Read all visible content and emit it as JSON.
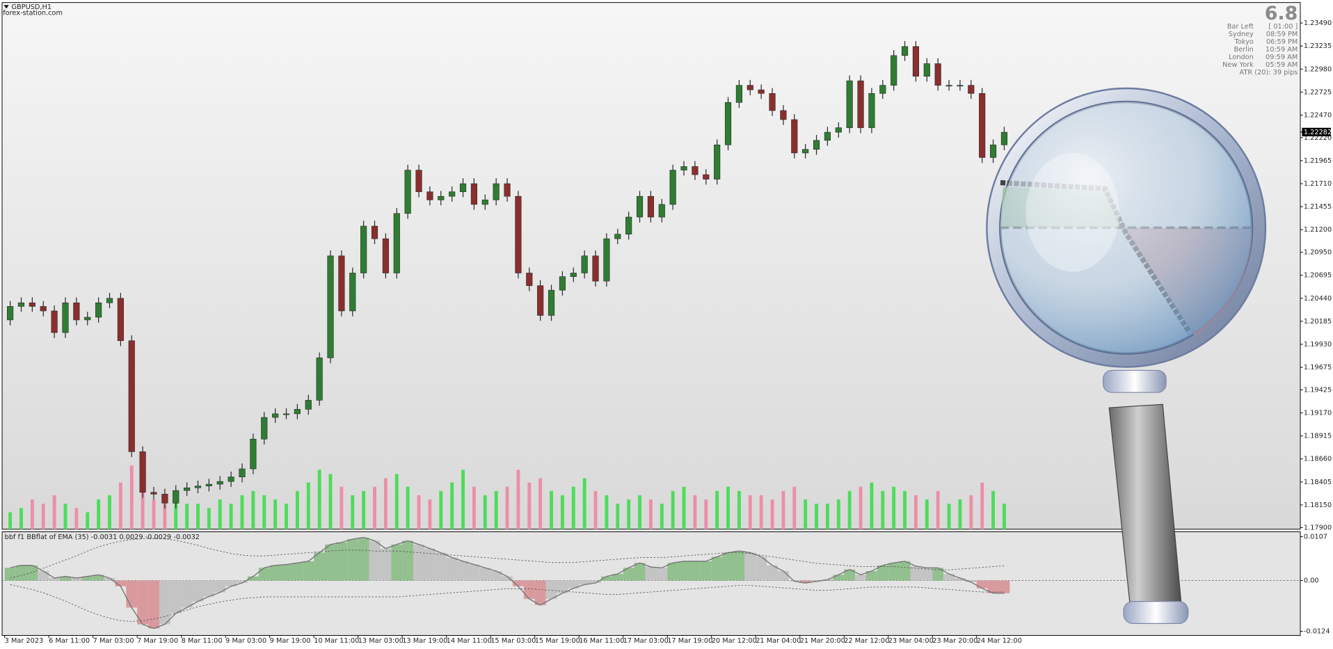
{
  "chart_data": [
    {
      "type": "candlestick",
      "title": "GBPUSD,H1",
      "subtitle": "forex-station.com",
      "categories": [
        "3 Mar 2023",
        null,
        null,
        null,
        "6 Mar 11:00",
        null,
        null,
        null,
        "7 Mar 03:00",
        null,
        null,
        null,
        "7 Mar 19:00",
        null,
        null,
        null,
        "8 Mar 11:00",
        null,
        null,
        null,
        "9 Mar 03:00",
        null,
        null,
        null,
        "9 Mar 19:00",
        null,
        null,
        null,
        "10 Mar 11:00",
        null,
        null,
        null,
        "13 Mar 03:00",
        null,
        null,
        null,
        "13 Mar 19:00",
        null,
        null,
        null,
        "14 Mar 11:00",
        null,
        null,
        null,
        "15 Mar 03:00",
        null,
        null,
        null,
        "15 Mar 19:00",
        null,
        null,
        null,
        "16 Mar 11:00",
        null,
        null,
        null,
        "17 Mar 03:00",
        null,
        null,
        null,
        "17 Mar 19:00",
        null,
        null,
        null,
        "20 Mar 12:00",
        null,
        null,
        null,
        "21 Mar 04:00",
        null,
        null,
        null,
        "21 Mar 20:00",
        null,
        null,
        null,
        "22 Mar 12:00",
        null,
        null,
        null,
        "23 Mar 04:00",
        null,
        null,
        null,
        "23 Mar 20:00",
        null,
        null,
        null,
        "24 Mar 12:00",
        null,
        null
      ],
      "open": [
        1.202,
        1.2035,
        1.2039,
        1.2035,
        1.203,
        1.2006,
        1.2039,
        1.202,
        1.2023,
        1.2039,
        1.2044,
        1.1997,
        1.1874,
        1.1829,
        1.1827,
        1.1817,
        1.1831,
        1.1834,
        1.1836,
        1.1838,
        1.1841,
        1.1846,
        1.1855,
        1.1888,
        1.1912,
        1.1916,
        1.1916,
        1.1921,
        1.1931,
        1.1978,
        1.2091,
        1.203,
        1.2072,
        1.2124,
        1.211,
        1.2072,
        1.2138,
        1.2186,
        1.2162,
        1.2153,
        1.2157,
        1.2162,
        1.2171,
        1.2148,
        1.2153,
        1.2171,
        1.2157,
        1.2072,
        1.2058,
        1.2025,
        1.2053,
        1.2068,
        1.2072,
        1.2091,
        1.2063,
        1.211,
        1.2115,
        1.2134,
        1.2157,
        1.2134,
        1.2148,
        1.2186,
        1.219,
        1.2181,
        1.2176,
        1.2214,
        1.2261,
        1.228,
        1.2275,
        1.2271,
        1.2252,
        1.2242,
        1.2205,
        1.2209,
        1.2219,
        1.2228,
        1.2233,
        1.2285,
        1.2233,
        1.2271,
        1.228,
        1.2313,
        1.2323,
        1.229,
        1.2304,
        1.228,
        1.228,
        1.228,
        1.2271,
        1.22,
        1.2214
      ],
      "high": [
        1.2041,
        1.2045,
        1.2045,
        1.2041,
        1.2036,
        1.2045,
        1.2045,
        1.2029,
        1.2045,
        1.205,
        1.205,
        1.2003,
        1.188,
        1.1835,
        1.1833,
        1.1837,
        1.184,
        1.1842,
        1.1844,
        1.1847,
        1.1852,
        1.1861,
        1.1894,
        1.1918,
        1.1922,
        1.1922,
        1.1927,
        1.1937,
        1.1984,
        1.2097,
        1.2097,
        1.2078,
        1.213,
        1.213,
        1.2116,
        1.2144,
        1.2192,
        1.2192,
        1.2168,
        1.2163,
        1.2168,
        1.2177,
        1.2177,
        1.2159,
        1.2177,
        1.2177,
        1.2163,
        1.2078,
        1.2064,
        1.2059,
        1.2074,
        1.2078,
        1.2097,
        1.2097,
        1.2116,
        1.2121,
        1.214,
        1.2163,
        1.2163,
        1.2154,
        1.2192,
        1.2196,
        1.2196,
        1.2187,
        1.222,
        1.2267,
        1.2286,
        1.2286,
        1.2281,
        1.2277,
        1.2258,
        1.2248,
        1.2215,
        1.2225,
        1.2234,
        1.2239,
        1.2291,
        1.2291,
        1.2277,
        1.2286,
        1.2319,
        1.2329,
        1.2329,
        1.231,
        1.231,
        1.2286,
        1.2286,
        1.2286,
        1.2277,
        1.222,
        1.2234
      ],
      "low": [
        1.2014,
        1.2029,
        1.2029,
        1.2024,
        1.2,
        1.2,
        1.2014,
        1.2014,
        1.2017,
        1.2033,
        1.1991,
        1.1868,
        1.1823,
        1.1821,
        1.1811,
        1.1811,
        1.1825,
        1.1828,
        1.183,
        1.1832,
        1.1835,
        1.184,
        1.1849,
        1.1882,
        1.1906,
        1.191,
        1.191,
        1.1915,
        1.1925,
        1.1972,
        1.2024,
        1.2024,
        1.2066,
        1.2104,
        1.2066,
        1.2066,
        1.2132,
        1.2156,
        1.2147,
        1.2147,
        1.2151,
        1.2156,
        1.2142,
        1.2142,
        1.2147,
        1.2151,
        1.2066,
        1.2052,
        1.2019,
        1.2019,
        1.2047,
        1.2062,
        1.2066,
        1.2057,
        1.2057,
        1.2104,
        1.2109,
        1.2128,
        1.2128,
        1.2128,
        1.2142,
        1.218,
        1.2175,
        1.217,
        1.217,
        1.2208,
        1.2255,
        1.2269,
        1.2265,
        1.2246,
        1.2236,
        1.2199,
        1.2199,
        1.2203,
        1.2213,
        1.2222,
        1.2227,
        1.2227,
        1.2227,
        1.2265,
        1.2274,
        1.2307,
        1.2284,
        1.2284,
        1.2274,
        1.2274,
        1.2274,
        1.2265,
        1.2194,
        1.2194,
        1.2208
      ],
      "close": [
        1.2035,
        1.2039,
        1.2035,
        1.203,
        1.2006,
        1.2039,
        1.202,
        1.2023,
        1.2039,
        1.2044,
        1.1997,
        1.1874,
        1.1829,
        1.1827,
        1.1817,
        1.1831,
        1.1834,
        1.1836,
        1.1838,
        1.1841,
        1.1846,
        1.1855,
        1.1888,
        1.1912,
        1.1916,
        1.1916,
        1.1921,
        1.1931,
        1.1978,
        1.2091,
        1.203,
        1.2072,
        1.2124,
        1.211,
        1.2072,
        1.2138,
        1.2186,
        1.2162,
        1.2153,
        1.2157,
        1.2162,
        1.2171,
        1.2148,
        1.2153,
        1.2171,
        1.2157,
        1.2072,
        1.2058,
        1.2025,
        1.2053,
        1.2068,
        1.2072,
        1.2091,
        1.2063,
        1.211,
        1.2115,
        1.2134,
        1.2157,
        1.2134,
        1.2148,
        1.2186,
        1.219,
        1.2181,
        1.2176,
        1.2214,
        1.2261,
        1.228,
        1.2275,
        1.2271,
        1.2252,
        1.2242,
        1.2205,
        1.2209,
        1.2219,
        1.2228,
        1.2233,
        1.2285,
        1.2233,
        1.2271,
        1.228,
        1.2313,
        1.2323,
        1.229,
        1.2304,
        1.228,
        1.228,
        1.228,
        1.2271,
        1.22,
        1.2214,
        1.2228
      ],
      "volume": [
        20,
        25,
        35,
        30,
        40,
        30,
        25,
        20,
        35,
        40,
        55,
        75,
        45,
        35,
        30,
        35,
        30,
        30,
        25,
        35,
        30,
        40,
        45,
        40,
        35,
        30,
        45,
        55,
        70,
        65,
        50,
        40,
        45,
        50,
        60,
        65,
        50,
        40,
        35,
        45,
        55,
        70,
        50,
        40,
        45,
        50,
        70,
        55,
        60,
        45,
        40,
        50,
        60,
        45,
        40,
        30,
        35,
        40,
        35,
        30,
        45,
        50,
        40,
        35,
        45,
        50,
        45,
        40,
        40,
        35,
        45,
        50,
        35,
        30,
        30,
        35,
        45,
        50,
        55,
        45,
        50,
        45,
        40,
        35,
        45,
        30,
        35,
        40,
        55,
        45,
        30
      ],
      "up_color": "#2f7d32",
      "down_color": "#8b2e2e",
      "wick_color": "#2a2a2a",
      "volume_up_color": "#4ddc5a",
      "volume_down_color": "#ec8fa6",
      "ylim": [
        1.17881,
        1.23717
      ],
      "yticks": [
        {
          "value": 1.2349,
          "label": "1.23490"
        },
        1.23235,
        {
          "value": 1.2298,
          "label": "1.22980"
        },
        1.22725,
        {
          "value": 1.2247,
          "label": "1.22470"
        },
        {
          "value": 1.2222,
          "label": "1.22220"
        },
        1.21965,
        {
          "value": 1.2171,
          "label": "1.21710"
        },
        1.21455,
        {
          "value": 1.212,
          "label": "1.21200"
        },
        {
          "value": 1.2095,
          "label": "1.20950"
        },
        1.20695,
        {
          "value": 1.2044,
          "label": "1.20440"
        },
        1.20185,
        {
          "value": 1.1993,
          "label": "1.19930"
        },
        1.19675,
        1.19425,
        {
          "value": 1.1917,
          "label": "1.19170"
        },
        1.18915,
        {
          "value": 1.1866,
          "label": "1.18660"
        },
        1.18405,
        {
          "value": 1.1815,
          "label": "1.18150"
        },
        {
          "value": 1.179,
          "label": "1.17900"
        }
      ],
      "last_price": 1.22282
    },
    {
      "type": "oscillator",
      "title": "bbf f1 BBflat of EMA (35) -0.0031 0.0029 -0.0029 -0.0032",
      "values": [
        0.0031,
        0.0037,
        0.0037,
        0.0023,
        0.0006,
        0.001,
        0.0006,
        0.001,
        0.0014,
        0.0006,
        -0.0014,
        -0.0066,
        -0.0107,
        -0.0117,
        -0.0107,
        -0.008,
        -0.0066,
        -0.0051,
        -0.0039,
        -0.0029,
        -0.0014,
        -0.0006,
        0.001,
        0.0031,
        0.0037,
        0.0039,
        0.0043,
        0.0047,
        0.0068,
        0.0088,
        0.0093,
        0.0101,
        0.0105,
        0.0097,
        0.0078,
        0.0088,
        0.0097,
        0.0088,
        0.0078,
        0.0068,
        0.0056,
        0.0047,
        0.0039,
        0.0031,
        0.0023,
        0.001,
        -0.0014,
        -0.0045,
        -0.006,
        -0.0045,
        -0.0031,
        -0.0019,
        -0.001,
        -0.0006,
        0.001,
        0.0016,
        0.0031,
        0.0043,
        0.0033,
        0.0031,
        0.0043,
        0.0047,
        0.0047,
        0.0047,
        0.0058,
        0.0068,
        0.0072,
        0.0068,
        0.0058,
        0.0037,
        0.0023,
        -0.0002,
        -0.0006,
        -0.0002,
        0.0002,
        0.0014,
        0.0027,
        0.0014,
        0.0023,
        0.0037,
        0.0043,
        0.0047,
        0.0035,
        0.0031,
        0.0031,
        0.0016,
        0.0006,
        -0.0004,
        -0.0019,
        -0.0031,
        -0.0031
      ],
      "upper": [
        0.0006,
        0.0012,
        0.002,
        0.003,
        0.004,
        0.005,
        0.006,
        0.0072,
        0.0082,
        0.009,
        0.0096,
        0.01,
        0.0102,
        0.0103,
        0.0102,
        0.0098,
        0.0092,
        0.0086,
        0.0078,
        0.0072,
        0.0066,
        0.0062,
        0.006,
        0.006,
        0.0062,
        0.0064,
        0.0066,
        0.0068,
        0.007,
        0.0072,
        0.0074,
        0.0074,
        0.0074,
        0.0072,
        0.0072,
        0.0072,
        0.007,
        0.0068,
        0.0066,
        0.0064,
        0.0062,
        0.006,
        0.0058,
        0.0056,
        0.0054,
        0.0052,
        0.005,
        0.0048,
        0.0046,
        0.0044,
        0.0044,
        0.0044,
        0.0046,
        0.0048,
        0.005,
        0.0052,
        0.0054,
        0.0056,
        0.0056,
        0.0056,
        0.0058,
        0.006,
        0.0062,
        0.0064,
        0.0066,
        0.0068,
        0.0068,
        0.0066,
        0.0062,
        0.0058,
        0.0054,
        0.005,
        0.0046,
        0.0042,
        0.004,
        0.0038,
        0.0036,
        0.0034,
        0.0034,
        0.0034,
        0.0034,
        0.0032,
        0.003,
        0.0028,
        0.0026,
        0.0026,
        0.0028,
        0.003,
        0.0032,
        0.0034,
        0.0036
      ],
      "lower": [
        -0.001,
        -0.0016,
        -0.0022,
        -0.003,
        -0.004,
        -0.005,
        -0.0062,
        -0.0074,
        -0.0084,
        -0.0092,
        -0.0098,
        -0.01,
        -0.0098,
        -0.0094,
        -0.0088,
        -0.008,
        -0.0072,
        -0.0064,
        -0.0058,
        -0.0052,
        -0.0048,
        -0.0044,
        -0.0042,
        -0.004,
        -0.004,
        -0.004,
        -0.004,
        -0.004,
        -0.004,
        -0.004,
        -0.004,
        -0.004,
        -0.004,
        -0.004,
        -0.004,
        -0.004,
        -0.0038,
        -0.0036,
        -0.0034,
        -0.0032,
        -0.003,
        -0.0028,
        -0.0026,
        -0.0024,
        -0.0022,
        -0.002,
        -0.002,
        -0.002,
        -0.0022,
        -0.0024,
        -0.0026,
        -0.0028,
        -0.003,
        -0.0032,
        -0.0034,
        -0.0034,
        -0.0032,
        -0.003,
        -0.0028,
        -0.0026,
        -0.0024,
        -0.0022,
        -0.002,
        -0.0018,
        -0.0016,
        -0.0014,
        -0.0012,
        -0.0012,
        -0.0014,
        -0.0016,
        -0.0018,
        -0.002,
        -0.0022,
        -0.0024,
        -0.0024,
        -0.0022,
        -0.002,
        -0.0018,
        -0.0016,
        -0.0016,
        -0.0016,
        -0.0016,
        -0.0016,
        -0.0018,
        -0.002,
        -0.0022,
        -0.0024,
        -0.0026,
        -0.0028,
        -0.0028,
        -0.0028
      ],
      "up_color": "#92c08e",
      "down_color": "#d99a9e",
      "flat_color": "#c4c4c4",
      "line_color": "#7a7a7a",
      "band_color": "#555555",
      "ylim": [
        -0.0134,
        0.0119
      ],
      "yticks": [
        0.0107,
        {
          "value": 0,
          "label": "0.00"
        },
        -0.0124
      ]
    }
  ],
  "info": {
    "big": 6.8,
    "rows": [
      [
        "Bar Left",
        "[ 01:00 ]"
      ],
      [
        "Sydney",
        "08:59 PM"
      ],
      [
        "Tokyo",
        "06:59 PM"
      ],
      [
        "Berlin",
        "10:59 AM"
      ],
      [
        "London",
        "09:59 AM"
      ],
      [
        "New York",
        "05:59 AM"
      ]
    ],
    "atr": "ATR (20): 39 pips"
  }
}
